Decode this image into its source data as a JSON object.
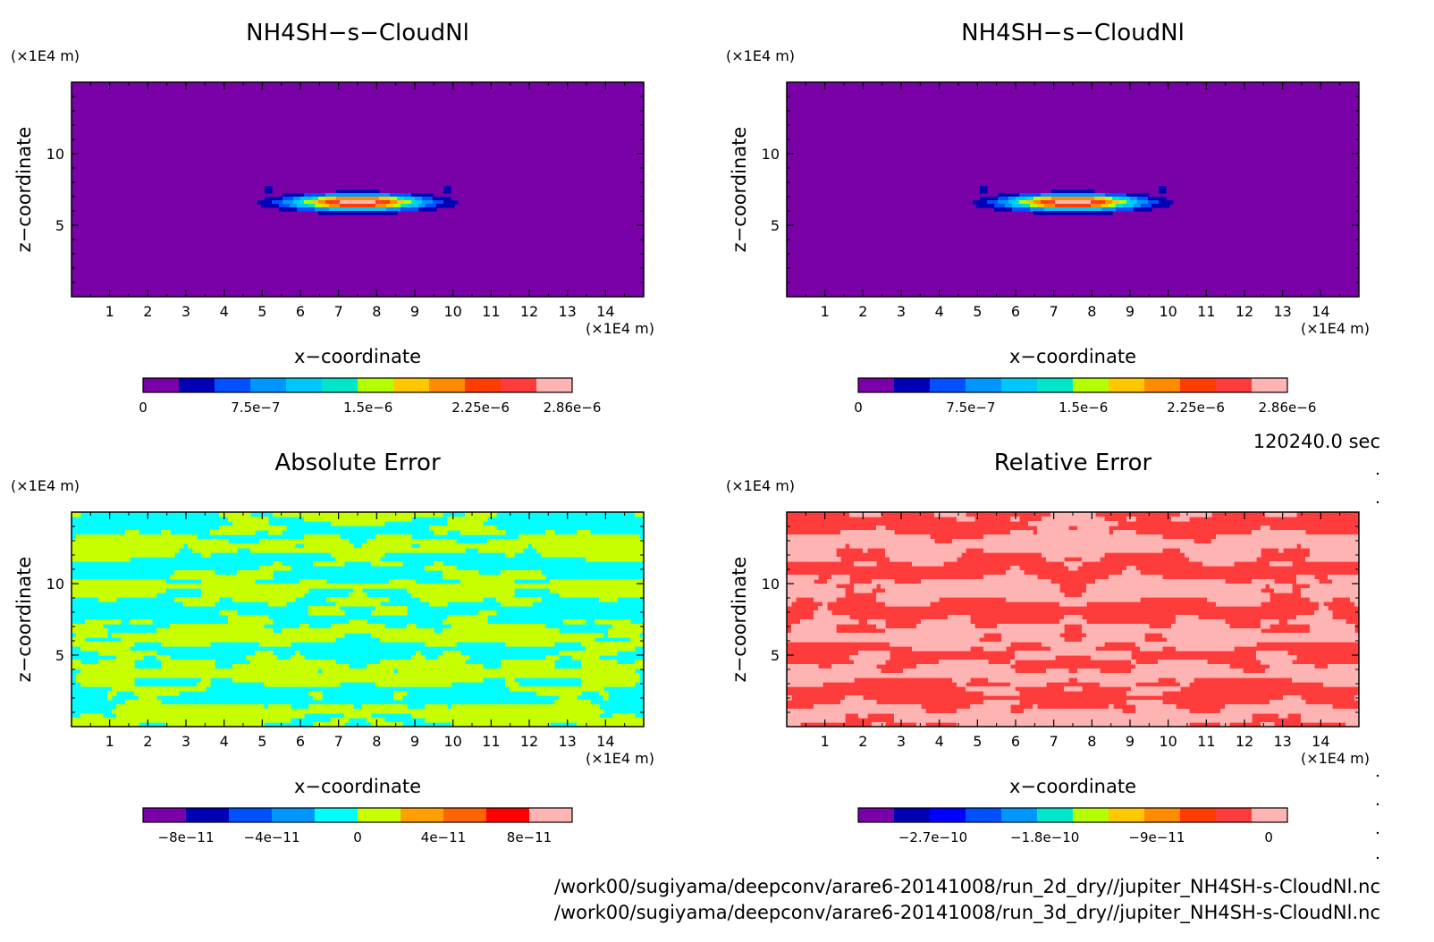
{
  "figure": {
    "time_label": "120240.0 sec",
    "files": [
      "/work00/sugiyama/deepconv/arare6-20141008/run_2d_dry//jupiter_NH4SH-s-CloudNl.nc",
      "/work00/sugiyama/deepconv/arare6-20141008/run_3d_dry//jupiter_NH4SH-s-CloudNl.nc"
    ]
  },
  "chart_data": [
    {
      "type": "heatmap",
      "id": "p1",
      "title": "NH4SH−s−CloudNl",
      "xlabel": "x−coordinate",
      "ylabel": "z−coordinate",
      "x_unit": "(×1E4 m)",
      "y_unit": "(×1E4 m)",
      "xlim": [
        0,
        15
      ],
      "ylim": [
        0,
        15
      ],
      "xticks": [
        1,
        2,
        3,
        4,
        5,
        6,
        7,
        8,
        9,
        10,
        11,
        12,
        13,
        14
      ],
      "yticks": [
        5,
        10
      ],
      "colorbar": {
        "colors": [
          "#7a00a8",
          "#0000b4",
          "#0050ff",
          "#0096ff",
          "#00c8ff",
          "#00e6c8",
          "#b4ff00",
          "#ffc800",
          "#ff8c00",
          "#ff3c00",
          "#ff3c3c",
          "#ffb4b4"
        ],
        "ticks": [
          0,
          7.5e-07,
          1.5e-06,
          2.25e-06,
          2.86e-06
        ],
        "tick_labels": [
          "0",
          "7.5e−7",
          "1.5e−6",
          "2.25e−6",
          "2.86e−6"
        ],
        "range": [
          0,
          2.86e-06
        ]
      },
      "field": "cloud",
      "peak_location": {
        "x": 7.5,
        "z": 6.6
      },
      "peak_value": 2.86e-06
    },
    {
      "type": "heatmap",
      "id": "p2",
      "title": "NH4SH−s−CloudNl",
      "xlabel": "x−coordinate",
      "ylabel": "z−coordinate",
      "x_unit": "(×1E4 m)",
      "y_unit": "(×1E4 m)",
      "xlim": [
        0,
        15
      ],
      "ylim": [
        0,
        15
      ],
      "xticks": [
        1,
        2,
        3,
        4,
        5,
        6,
        7,
        8,
        9,
        10,
        11,
        12,
        13,
        14
      ],
      "yticks": [
        5,
        10
      ],
      "colorbar": {
        "colors": [
          "#7a00a8",
          "#0000b4",
          "#0050ff",
          "#0096ff",
          "#00c8ff",
          "#00e6c8",
          "#b4ff00",
          "#ffc800",
          "#ff8c00",
          "#ff3c00",
          "#ff3c3c",
          "#ffb4b4"
        ],
        "ticks": [
          0,
          7.5e-07,
          1.5e-06,
          2.25e-06,
          2.86e-06
        ],
        "tick_labels": [
          "0",
          "7.5e−7",
          "1.5e−6",
          "2.25e−6",
          "2.86e−6"
        ],
        "range": [
          0,
          2.86e-06
        ]
      },
      "field": "cloud",
      "peak_location": {
        "x": 7.5,
        "z": 6.6
      },
      "peak_value": 2.86e-06
    },
    {
      "type": "heatmap",
      "id": "p3",
      "title": "Absolute Error",
      "xlabel": "x−coordinate",
      "ylabel": "z−coordinate",
      "x_unit": "(×1E4 m)",
      "y_unit": "(×1E4 m)",
      "xlim": [
        0,
        15
      ],
      "ylim": [
        0,
        15
      ],
      "xticks": [
        1,
        2,
        3,
        4,
        5,
        6,
        7,
        8,
        9,
        10,
        11,
        12,
        13,
        14
      ],
      "yticks": [
        5,
        10
      ],
      "colorbar": {
        "colors": [
          "#7a00a8",
          "#0000b4",
          "#0050ff",
          "#0096ff",
          "#00ffff",
          "#c8ff00",
          "#ffa000",
          "#ff6400",
          "#ff0000",
          "#ffb4b4"
        ],
        "ticks": [
          -8e-11,
          -4e-11,
          0,
          4e-11,
          8e-11
        ],
        "tick_labels": [
          "−8e−11",
          "−4e−11",
          "0",
          "4e−11",
          "8e−11"
        ],
        "range": [
          -1e-10,
          1e-10
        ]
      },
      "field": "error",
      "error_colors": [
        "#00ffff",
        "#c8ff00"
      ]
    },
    {
      "type": "heatmap",
      "id": "p4",
      "title": "Relative Error",
      "xlabel": "x−coordinate",
      "ylabel": "z−coordinate",
      "x_unit": "(×1E4 m)",
      "y_unit": "(×1E4 m)",
      "xlim": [
        0,
        15
      ],
      "ylim": [
        0,
        15
      ],
      "xticks": [
        1,
        2,
        3,
        4,
        5,
        6,
        7,
        8,
        9,
        10,
        11,
        12,
        13,
        14
      ],
      "yticks": [
        5,
        10
      ],
      "colorbar": {
        "colors": [
          "#7a00a8",
          "#0000b4",
          "#0000ff",
          "#0050ff",
          "#0096ff",
          "#00e6c8",
          "#b4ff00",
          "#ffc800",
          "#ff8c00",
          "#ff3c00",
          "#ff3c3c",
          "#ffb4b4"
        ],
        "ticks": [
          -2.7e-10,
          -1.8e-10,
          -9e-11,
          0
        ],
        "tick_labels": [
          "−2.7e−10",
          "−1.8e−10",
          "−9e−11",
          "0"
        ],
        "range": [
          -3.3e-10,
          1.5e-11
        ]
      },
      "field": "error",
      "error_colors": [
        "#ff3c3c",
        "#ffb4b4"
      ]
    }
  ]
}
